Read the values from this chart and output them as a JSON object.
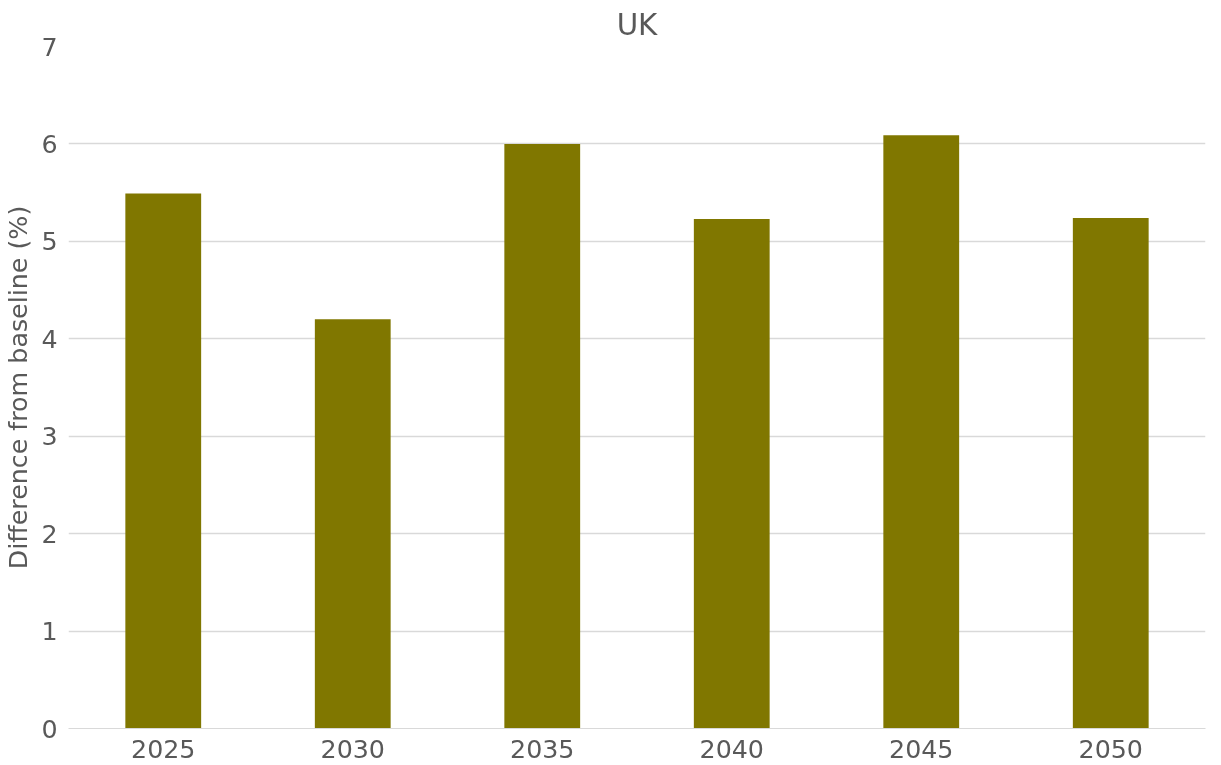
{
  "chart_data": {
    "type": "bar",
    "title": "UK",
    "ylabel": "Difference from baseline (%)",
    "categories": [
      "2025",
      "2030",
      "2035",
      "2040",
      "2045",
      "2050"
    ],
    "values": [
      5.49,
      4.2,
      6.0,
      5.23,
      6.09,
      5.24
    ],
    "color": "#807700",
    "ylim": [
      0,
      7
    ],
    "yticks": [
      0,
      1,
      2,
      3,
      4,
      5,
      6,
      7
    ],
    "grid": "y"
  }
}
